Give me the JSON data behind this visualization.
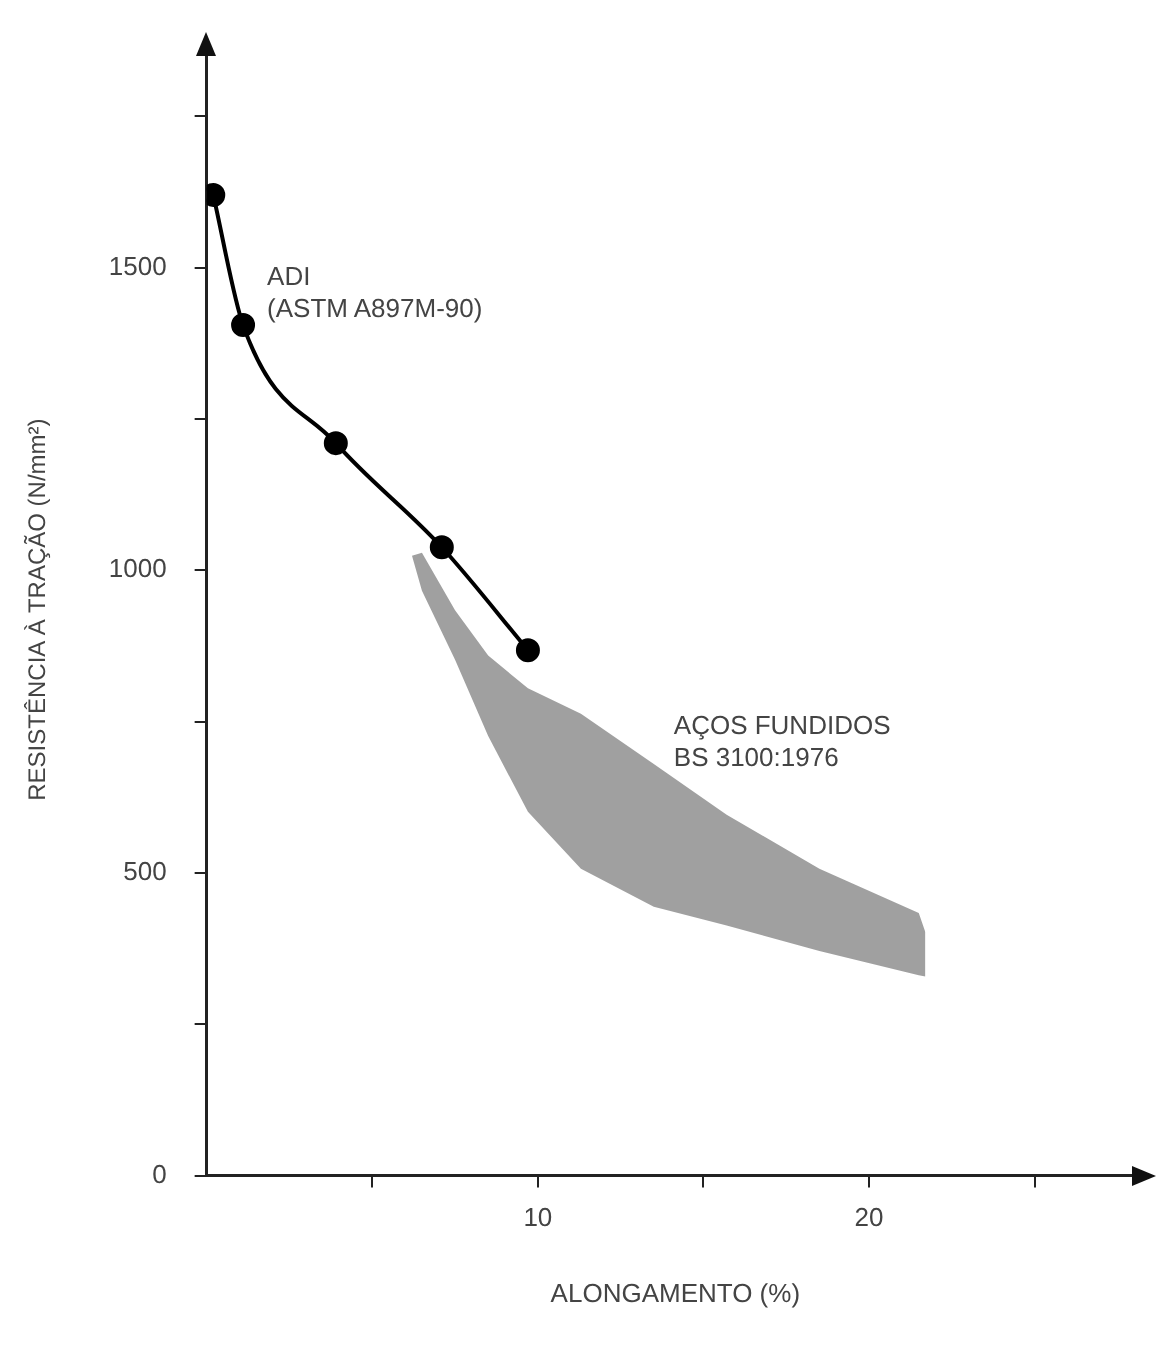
{
  "chart_data": {
    "type": "line",
    "xlabel": "ALONGAMENTO (%)",
    "ylabel": "RESISTÊNCIA À TRAÇÃO (N/mm²)",
    "xlim": [
      0,
      28.3
    ],
    "xticks": [
      {
        "value": 5,
        "label": null
      },
      10,
      {
        "value": 15,
        "label": null
      },
      20,
      {
        "value": 25,
        "label": null
      }
    ],
    "ylim": [
      0,
      1870
    ],
    "yticks": [
      0,
      {
        "value": 250,
        "label": null
      },
      500,
      {
        "value": 750,
        "label": null
      },
      1000,
      {
        "value": 1250,
        "label": null
      },
      1500,
      {
        "value": 1750,
        "label": null
      }
    ],
    "grid": false,
    "legend": false,
    "marker": "circle",
    "line_style": "solid",
    "series": [
      {
        "name": "ADI\n(ASTM A897M-90)",
        "color": "#000000",
        "x": [
          0.2,
          1.1,
          3.9,
          7.1,
          9.7
        ],
        "values": [
          1620,
          1405,
          1210,
          1038,
          868
        ]
      },
      {
        "type": "area",
        "name": "AÇOS FUNDIDOS\nBS 3100:1976",
        "color": "#333333",
        "x": [
          6.2,
          6.5,
          7.5,
          8.5,
          9.7,
          11.3,
          13.5,
          15.7,
          18.5,
          21.5,
          21.7
        ],
        "values": [
          null,
          null,
          null,
          null,
          null,
          null,
          null,
          null,
          null,
          null,
          null
        ],
        "upper": [
          1024,
          1029,
          934,
          859,
          805,
          763,
          680,
          596,
          507,
          434,
          402
        ],
        "lower": [
          1024,
          966,
          852,
          726,
          601,
          507,
          444,
          413,
          371,
          331,
          329
        ]
      }
    ]
  }
}
